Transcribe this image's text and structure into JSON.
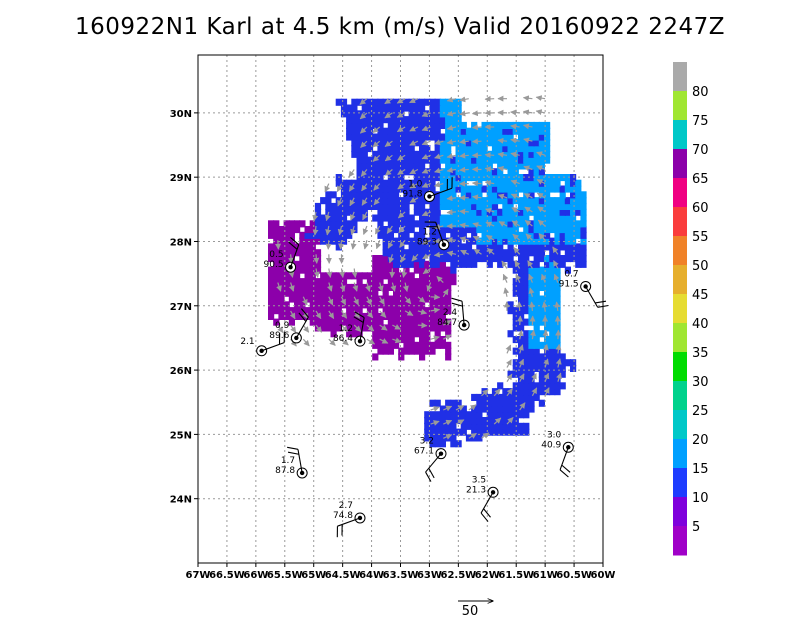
{
  "chart_data": {
    "type": "heatmap",
    "title": "160922N1 Karl at 4.5 km (m/s) Valid 20160922 2247Z",
    "x_ticks": [
      "67W",
      "66.5W",
      "66W",
      "65.5W",
      "65W",
      "64.5W",
      "64W",
      "63.5W",
      "63W",
      "62.5W",
      "62W",
      "61.5W",
      "61W",
      "60.5W",
      "60W"
    ],
    "y_ticks": [
      "24N",
      "25N",
      "26N",
      "27N",
      "28N",
      "29N",
      "30N"
    ],
    "xlim": [
      -67,
      -60
    ],
    "ylim": [
      23,
      30.9
    ],
    "colorbar": {
      "labels": [
        "5",
        "10",
        "15",
        "20",
        "25",
        "30",
        "35",
        "40",
        "45",
        "50",
        "55",
        "60",
        "65",
        "70",
        "75",
        "80"
      ],
      "colors": [
        "#a000c8",
        "#7f00dc",
        "#1e3cff",
        "#00a0ff",
        "#00c8c8",
        "#00d28c",
        "#00dc00",
        "#a0e632",
        "#e6dc32",
        "#e6af2d",
        "#f08228",
        "#fa3c3c",
        "#f00082",
        "#8c00aa",
        "#00c8c8",
        "#a0e632",
        "#aaaaaa"
      ]
    },
    "reference_vector_label": "50",
    "stations": [
      {
        "lon": -65.9,
        "lat": 26.3,
        "labels": [
          "2.1"
        ]
      },
      {
        "lon": -65.4,
        "lat": 27.6,
        "labels": [
          "0.5",
          "90.5"
        ]
      },
      {
        "lon": -65.3,
        "lat": 26.5,
        "labels": [
          "0.9",
          "89.6"
        ]
      },
      {
        "lon": -64.2,
        "lat": 26.45,
        "labels": [
          "1.2",
          "86.4"
        ]
      },
      {
        "lon": -63.0,
        "lat": 28.7,
        "labels": [
          "1.0",
          "91.8"
        ]
      },
      {
        "lon": -62.75,
        "lat": 27.95,
        "labels": [
          "1.2",
          "89.3"
        ]
      },
      {
        "lon": -62.4,
        "lat": 26.7,
        "labels": [
          "2.4",
          "84.7"
        ]
      },
      {
        "lon": -62.8,
        "lat": 24.7,
        "labels": [
          "3.2",
          "67.1"
        ]
      },
      {
        "lon": -61.9,
        "lat": 24.1,
        "labels": [
          "3.5",
          "21.3"
        ]
      },
      {
        "lon": -60.6,
        "lat": 24.8,
        "labels": [
          "3.0",
          "40.9"
        ]
      },
      {
        "lon": -60.3,
        "lat": 27.3,
        "labels": [
          "0.7",
          "91.5"
        ]
      },
      {
        "lon": -65.2,
        "lat": 24.4,
        "labels": [
          "1.7",
          "87.8"
        ]
      },
      {
        "lon": -64.2,
        "lat": 23.7,
        "labels": [
          "2.7",
          "74.8"
        ]
      }
    ]
  }
}
